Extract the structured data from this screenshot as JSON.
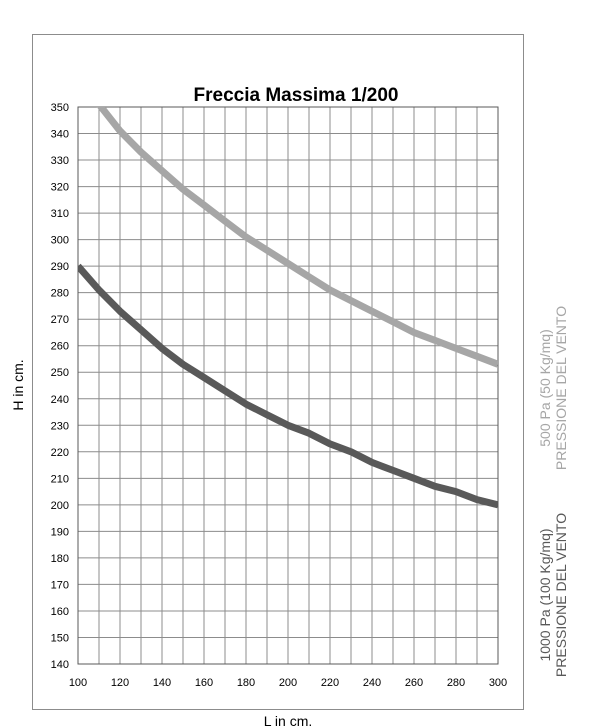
{
  "chart_data": {
    "type": "line",
    "title": "Freccia Massima 1/200",
    "xlabel": "L in cm.",
    "ylabel": "H in cm.",
    "xlim": [
      100,
      300
    ],
    "ylim": [
      140,
      350
    ],
    "x_ticks": [
      100,
      120,
      140,
      160,
      180,
      200,
      220,
      240,
      260,
      280,
      300
    ],
    "y_ticks": [
      140,
      150,
      160,
      170,
      180,
      190,
      200,
      210,
      220,
      230,
      240,
      250,
      260,
      270,
      280,
      290,
      300,
      310,
      320,
      330,
      340,
      350
    ],
    "grid": true,
    "x": [
      100,
      110,
      120,
      130,
      140,
      150,
      160,
      170,
      180,
      190,
      200,
      210,
      220,
      230,
      240,
      250,
      260,
      270,
      280,
      290,
      300
    ],
    "series": [
      {
        "name": "500 Pa (50 Kg/mq) PRESSIONE DEL VENTO",
        "name_lines": [
          "500 Pa (50 Kg/mq)",
          "PRESSIONE DEL VENTO"
        ],
        "color": "#a6a6a6",
        "values": [
          363,
          351,
          341,
          333,
          326,
          319,
          313,
          307,
          301,
          296,
          291,
          286,
          281,
          277,
          273,
          269,
          265,
          262,
          259,
          256,
          253
        ]
      },
      {
        "name": "1000 Pa (100 Kg/mq) PRESSIONE DEL VENTO",
        "name_lines": [
          "1000 Pa (100 Kg/mq)",
          "PRESSIONE DEL VENTO"
        ],
        "color": "#595959",
        "values": [
          290,
          281,
          273,
          266,
          259,
          253,
          248,
          243,
          238,
          234,
          230,
          227,
          223,
          220,
          216,
          213,
          210,
          207,
          205,
          202,
          200
        ]
      }
    ]
  }
}
